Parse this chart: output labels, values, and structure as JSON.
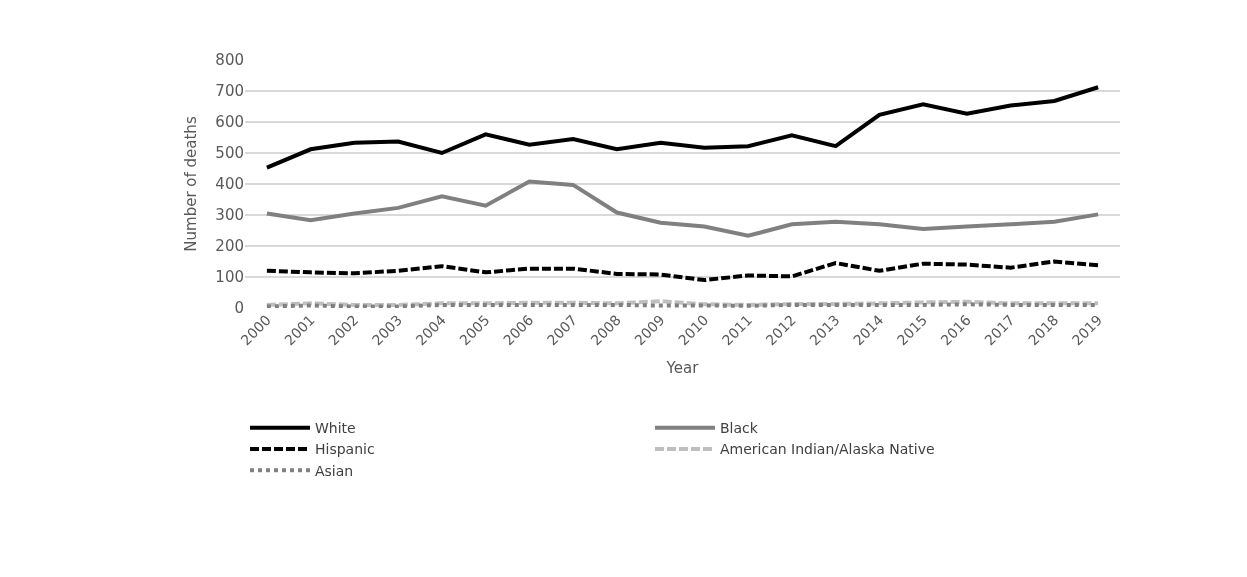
{
  "chart_data": {
    "type": "line",
    "xlabel": "Year",
    "ylabel": "Number of deaths",
    "categories": [
      "2000",
      "2001",
      "2002",
      "2003",
      "2004",
      "2005",
      "2006",
      "2007",
      "2008",
      "2009",
      "2010",
      "2011",
      "2012",
      "2013",
      "2014",
      "2015",
      "2016",
      "2017",
      "2018",
      "2019"
    ],
    "ylim": [
      0,
      800
    ],
    "yticks": [
      0,
      100,
      200,
      300,
      400,
      500,
      600,
      700,
      800
    ],
    "grid": "y",
    "legend": "bottom",
    "marker": "none",
    "series": [
      {
        "name": "White",
        "color": "#000000",
        "line_style": "solid",
        "values": [
          453,
          512,
          533,
          537,
          500,
          560,
          527,
          545,
          512,
          533,
          517,
          522,
          557,
          522,
          623,
          657,
          627,
          653,
          668,
          712
        ]
      },
      {
        "name": "Black",
        "color": "#808080",
        "line_style": "solid",
        "values": [
          305,
          283,
          305,
          323,
          360,
          330,
          408,
          397,
          308,
          275,
          263,
          233,
          270,
          278,
          270,
          255,
          263,
          270,
          278,
          302
        ]
      },
      {
        "name": "Hispanic",
        "color": "#000000",
        "line_style": "dashed",
        "values": [
          120,
          115,
          112,
          120,
          135,
          115,
          127,
          127,
          110,
          108,
          90,
          105,
          102,
          145,
          120,
          143,
          140,
          130,
          150,
          138
        ]
      },
      {
        "name": "American Indian/Alaska Native",
        "color": "#bfbfbf",
        "line_style": "dashed",
        "values": [
          10,
          15,
          10,
          10,
          15,
          15,
          17,
          17,
          15,
          22,
          12,
          10,
          13,
          13,
          15,
          18,
          20,
          15,
          15,
          15
        ]
      },
      {
        "name": "Asian",
        "color": "#808080",
        "line_style": "dotted",
        "values": [
          5,
          8,
          5,
          5,
          10,
          10,
          10,
          10,
          10,
          8,
          8,
          7,
          10,
          10,
          10,
          10,
          12,
          10,
          10,
          10
        ]
      }
    ]
  }
}
